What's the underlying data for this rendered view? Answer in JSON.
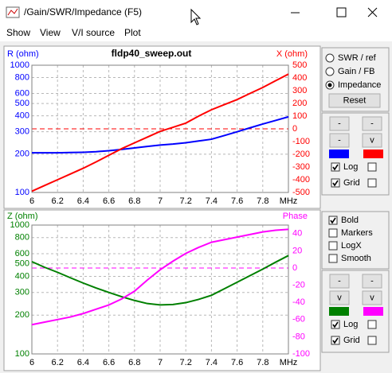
{
  "window": {
    "title": "/Gain/SWR/Impedance (F5)"
  },
  "menu": [
    "Show",
    "View",
    "V/I source",
    "Plot"
  ],
  "chart_data": [
    {
      "type": "line",
      "title": "fldp40_sweep.out",
      "ylabel": "R (ohm)",
      "y2label": "X (ohm)",
      "x": [
        6.0,
        6.1,
        6.2,
        6.3,
        6.4,
        6.5,
        6.6,
        6.7,
        6.8,
        6.9,
        7.0,
        7.1,
        7.2,
        7.3,
        7.4,
        7.5,
        7.6,
        7.7,
        7.8,
        7.9,
        8.0
      ],
      "xlim": [
        6,
        8
      ],
      "xticks": [
        6,
        6.2,
        6.4,
        6.6,
        6.8,
        7,
        7.2,
        7.4,
        7.6,
        7.8,
        {
          "value": 8,
          "label": "MHz"
        }
      ],
      "ylim": [
        100,
        1000
      ],
      "ylog": true,
      "yticks": [
        100,
        200,
        300,
        400,
        500,
        600,
        800,
        1000
      ],
      "y2lim": [
        -500,
        500
      ],
      "y2ticks": [
        -500,
        -400,
        -300,
        -200,
        -100,
        0,
        100,
        200,
        300,
        400,
        500
      ],
      "grid": true,
      "series": [
        {
          "name": "R (ohm)",
          "color": "#0000ff",
          "values": [
            205,
            205,
            205,
            206,
            207,
            209,
            213,
            218,
            224,
            230,
            236,
            240,
            246,
            254,
            262,
            280,
            300,
            322,
            345,
            368,
            393
          ]
        },
        {
          "name": "X (ohm)",
          "color": "#ff0000",
          "axis": "y2",
          "values": [
            -490,
            -445,
            -400,
            -355,
            -310,
            -260,
            -208,
            -156,
            -110,
            -65,
            -20,
            12,
            45,
            100,
            150,
            190,
            230,
            278,
            325,
            378,
            430
          ]
        }
      ]
    },
    {
      "type": "line",
      "ylabel": "Z (ohm)",
      "y2label": "Phase",
      "x": [
        6.0,
        6.1,
        6.2,
        6.3,
        6.4,
        6.5,
        6.6,
        6.7,
        6.8,
        6.9,
        7.0,
        7.1,
        7.2,
        7.3,
        7.4,
        7.5,
        7.6,
        7.7,
        7.8,
        7.9,
        8.0
      ],
      "xlim": [
        6,
        8
      ],
      "xticks": [
        6,
        6.2,
        6.4,
        6.6,
        6.8,
        7,
        7.2,
        7.4,
        7.6,
        7.8,
        {
          "value": 8,
          "label": "MHz"
        }
      ],
      "ylim": [
        100,
        1000
      ],
      "ylog": true,
      "yticks": [
        100,
        200,
        300,
        400,
        500,
        600,
        800,
        1000
      ],
      "y2lim": [
        -100,
        50
      ],
      "y2ticks": [
        -100,
        -80,
        -60,
        -40,
        -20,
        0,
        20,
        40
      ],
      "grid": true,
      "series": [
        {
          "name": "Z (ohm)",
          "color": "#008000",
          "values": [
            520,
            470,
            430,
            390,
            355,
            325,
            300,
            278,
            260,
            246,
            240,
            242,
            250,
            265,
            285,
            320,
            360,
            405,
            455,
            515,
            580
          ]
        },
        {
          "name": "Phase",
          "color": "#ff00ff",
          "axis": "y2",
          "values": [
            -66,
            -63,
            -60,
            -57,
            -53,
            -48,
            -43,
            -36,
            -27,
            -14,
            -2,
            8,
            17,
            24,
            30,
            33,
            36,
            39,
            42,
            44,
            45
          ]
        }
      ]
    }
  ],
  "panels": [
    {
      "radios": [
        "SWR / ref",
        "Gain / FB",
        "Impedance"
      ],
      "selected": 2,
      "reset": "Reset",
      "buttons": [
        "-",
        "-",
        "-",
        "v"
      ],
      "checks": [
        {
          "label": "Log",
          "checked": [
            true,
            false
          ]
        },
        {
          "label": "Grid",
          "checked": [
            true,
            false
          ]
        }
      ]
    },
    {
      "options": [
        {
          "label": "Bold",
          "checked": true
        },
        {
          "label": "Markers",
          "checked": false
        },
        {
          "label": "LogX",
          "checked": false
        },
        {
          "label": "Smooth",
          "checked": false
        }
      ],
      "buttons": [
        "-",
        "-",
        "v",
        "v"
      ],
      "checks": [
        {
          "label": "Log",
          "checked": [
            true,
            false
          ]
        },
        {
          "label": "Grid",
          "checked": [
            true,
            false
          ]
        }
      ]
    }
  ]
}
